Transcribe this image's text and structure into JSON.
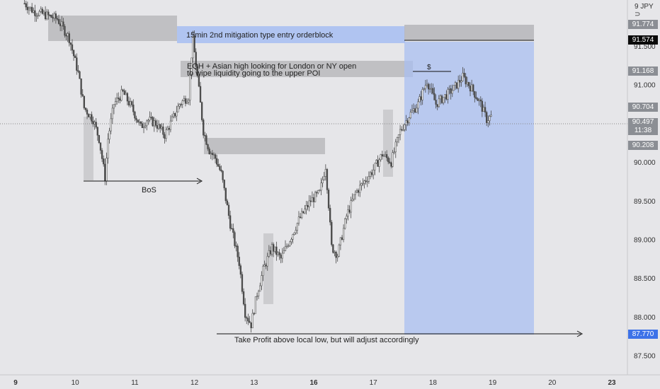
{
  "symbol_label": "9 JPY ⊃",
  "chart_data": {
    "type": "candlestick",
    "instrument_label": "9 JPY",
    "y_axis": {
      "ticks": [
        91.5,
        91.0,
        90.0,
        89.5,
        89.0,
        88.5,
        88.0,
        87.5
      ],
      "tick_labels": [
        "91.500",
        "91.000",
        "90.000",
        "89.500",
        "89.000",
        "88.500",
        "88.000",
        "87.500"
      ],
      "range": [
        87.3,
        92.1
      ]
    },
    "x_axis": {
      "ticks": [
        {
          "label": "9",
          "day": 9,
          "bold": true
        },
        {
          "label": "10",
          "day": 10,
          "bold": false
        },
        {
          "label": "11",
          "day": 11,
          "bold": false
        },
        {
          "label": "12",
          "day": 12,
          "bold": false
        },
        {
          "label": "13",
          "day": 13,
          "bold": false
        },
        {
          "label": "16",
          "day": 14,
          "bold": true
        },
        {
          "label": "17",
          "day": 15,
          "bold": false
        },
        {
          "label": "18",
          "day": 16,
          "bold": false
        },
        {
          "label": "19",
          "day": 17,
          "bold": false
        },
        {
          "label": "20",
          "day": 18,
          "bold": false
        },
        {
          "label": "23",
          "day": 19,
          "bold": true
        }
      ]
    },
    "price_path": [
      [
        9.15,
        92.05
      ],
      [
        9.3,
        91.95
      ],
      [
        9.5,
        91.9
      ],
      [
        9.7,
        91.85
      ],
      [
        9.9,
        91.6
      ],
      [
        10.05,
        91.15
      ],
      [
        10.15,
        90.7
      ],
      [
        10.3,
        90.55
      ],
      [
        10.4,
        90.3
      ],
      [
        10.5,
        89.8
      ],
      [
        10.55,
        90.3
      ],
      [
        10.65,
        90.75
      ],
      [
        10.8,
        90.9
      ],
      [
        10.95,
        90.7
      ],
      [
        11.1,
        90.45
      ],
      [
        11.2,
        90.55
      ],
      [
        11.35,
        90.5
      ],
      [
        11.5,
        90.35
      ],
      [
        11.6,
        90.5
      ],
      [
        11.75,
        90.75
      ],
      [
        11.9,
        90.85
      ],
      [
        11.97,
        91.6
      ],
      [
        12.05,
        91.1
      ],
      [
        12.15,
        90.4
      ],
      [
        12.25,
        90.15
      ],
      [
        12.35,
        90.05
      ],
      [
        12.45,
        89.85
      ],
      [
        12.6,
        89.2
      ],
      [
        12.75,
        88.7
      ],
      [
        12.85,
        88.05
      ],
      [
        12.95,
        87.9
      ],
      [
        13.05,
        88.3
      ],
      [
        13.15,
        88.6
      ],
      [
        13.3,
        88.9
      ],
      [
        13.45,
        88.75
      ],
      [
        13.6,
        89.0
      ],
      [
        13.75,
        89.25
      ],
      [
        13.95,
        89.5
      ],
      [
        14.1,
        89.6
      ],
      [
        14.2,
        89.95
      ],
      [
        14.25,
        89.45
      ],
      [
        14.3,
        88.9
      ],
      [
        14.4,
        88.8
      ],
      [
        14.55,
        89.3
      ],
      [
        14.7,
        89.6
      ],
      [
        14.85,
        89.75
      ],
      [
        15.0,
        89.9
      ],
      [
        15.15,
        90.1
      ],
      [
        15.3,
        90.0
      ],
      [
        15.45,
        90.4
      ],
      [
        15.6,
        90.6
      ],
      [
        15.75,
        90.75
      ],
      [
        15.9,
        91.05
      ],
      [
        16.05,
        90.75
      ],
      [
        16.2,
        90.85
      ],
      [
        16.35,
        90.95
      ],
      [
        16.5,
        91.1
      ],
      [
        16.65,
        90.95
      ],
      [
        16.8,
        90.75
      ],
      [
        16.9,
        90.55
      ],
      [
        17.0,
        90.6
      ]
    ],
    "annotations": {
      "orderblock_label": "15min 2nd mitigation type entry orderblock",
      "eqh_line1": "EQH + Asian high looking for London or NY open",
      "eqh_line2": "to wipe liquidity going to the upper POI",
      "bos_label": "BoS",
      "tp_label": "Take Profit above local low, but will adjust accordingly",
      "liquidity_label": "$"
    },
    "price_tags": {
      "stop": "91.774",
      "entry": "91.574",
      "eqh": "91.168",
      "level_a": "90.704",
      "current": "90.497",
      "countdown": "11:38",
      "level_b": "90.208",
      "target": "87.770"
    },
    "colors": {
      "background": "#e6e6e9",
      "candle": "#4a4a4a",
      "zone": "#b8b8bc",
      "position": "#a9bff0",
      "orderblock": "#a6bdf2",
      "target_tag": "#3d72e8"
    }
  }
}
